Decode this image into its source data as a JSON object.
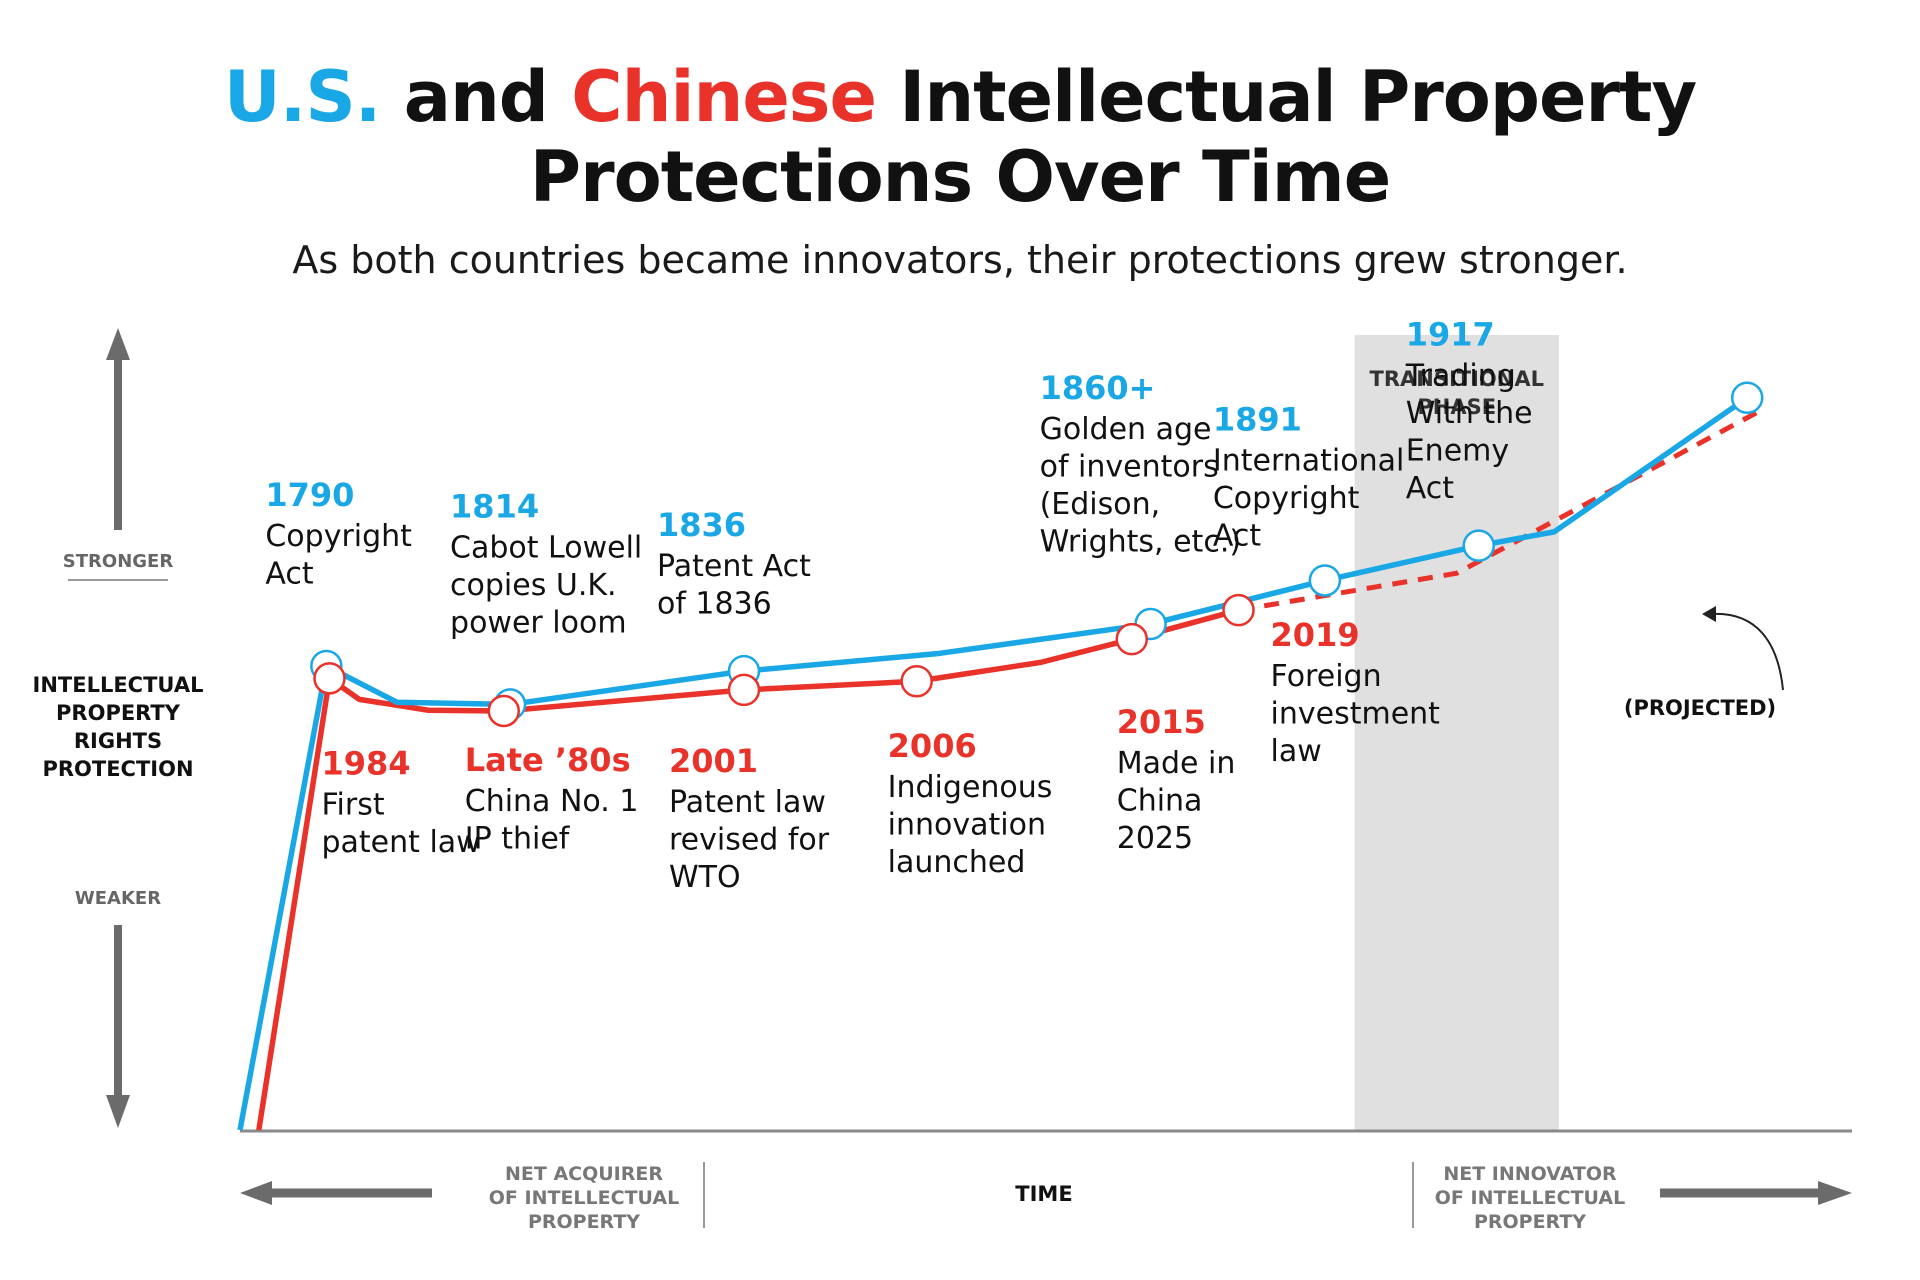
{
  "title": {
    "us_word": "U.S.",
    "and_word": " and ",
    "china_word": "Chinese",
    "rest_line1": " Intellectual Property",
    "line2": "Protections Over Time"
  },
  "subtitle": "As both countries became innovators, their protections grew stronger.",
  "colors": {
    "us": "#1aa7e6",
    "china": "#e8322a",
    "shade": "#e0e0e0",
    "axis": "#6b6b6b"
  },
  "chart_data": {
    "type": "line",
    "y_axis": {
      "label_lines": [
        "INTELLECTUAL",
        "PROPERTY",
        "RIGHTS",
        "PROTECTION"
      ],
      "top_label": "STRONGER",
      "bottom_label": "WEAKER"
    },
    "x_axis": {
      "label": "TIME",
      "left_label_lines": [
        "NET ACQUIRER",
        "OF INTELLECTUAL",
        "PROPERTY"
      ],
      "right_label_lines": [
        "NET INNOVATOR",
        "OF INTELLECTUAL",
        "PROPERTY"
      ]
    },
    "shaded_region": {
      "label_lines": [
        "TRANSITIONAL",
        "PHASE"
      ],
      "from_x": 7.1,
      "to_x": 8.4
    },
    "projected_label": "(PROJECTED)",
    "series": [
      {
        "name": "U.S.",
        "points": [
          [
            0,
            0
          ],
          [
            0.55,
            6.4
          ],
          [
            1,
            5.9
          ],
          [
            1.72,
            5.87
          ],
          [
            3.21,
            6.33
          ],
          [
            4.44,
            6.57
          ],
          [
            5.8,
            6.98
          ],
          [
            6.91,
            7.58
          ],
          [
            7.89,
            8.06
          ],
          [
            8.37,
            8.25
          ],
          [
            9.6,
            10.1
          ]
        ],
        "events": [
          {
            "point": 1,
            "year": "1790",
            "lines": [
              "Copyright",
              "Act"
            ]
          },
          {
            "point": 3,
            "year": "1814",
            "lines": [
              "Cabot Lowell",
              "copies U.K.",
              "power loom"
            ]
          },
          {
            "point": 4,
            "year": "1836",
            "lines": [
              "Patent Act",
              "of 1836"
            ]
          },
          {
            "point": 6,
            "year": "1860+",
            "lines": [
              "Golden age",
              "of inventors",
              "(Edison,",
              "Wrights, etc.)"
            ]
          },
          {
            "point": 7,
            "year": "1891",
            "lines": [
              "International",
              "Copyright",
              "Act"
            ]
          },
          {
            "point": 8,
            "year": "1917",
            "lines": [
              "Trading",
              "With the",
              "Enemy",
              "Act"
            ]
          },
          {
            "point": 10,
            "year": "",
            "lines": []
          }
        ]
      },
      {
        "name": "China",
        "projected_from_point": 9,
        "points": [
          [
            0.12,
            0
          ],
          [
            0.57,
            6.23
          ],
          [
            0.76,
            5.94
          ],
          [
            1.2,
            5.79
          ],
          [
            1.68,
            5.78
          ],
          [
            3.21,
            6.07
          ],
          [
            4.31,
            6.19
          ],
          [
            5.1,
            6.45
          ],
          [
            5.68,
            6.77
          ],
          [
            6.36,
            7.17
          ],
          [
            7.75,
            7.68
          ],
          [
            9.7,
            9.94
          ]
        ],
        "events": [
          {
            "point": 1,
            "year": "1984",
            "lines": [
              "First",
              "patent law"
            ]
          },
          {
            "point": 4,
            "year": "Late ’80s",
            "lines": [
              "China No. 1",
              "IP thief"
            ]
          },
          {
            "point": 5,
            "year": "2001",
            "lines": [
              "Patent law",
              "revised for",
              "WTO"
            ]
          },
          {
            "point": 6,
            "year": "2006",
            "lines": [
              "Indigenous",
              "innovation",
              "launched"
            ]
          },
          {
            "point": 8,
            "year": "2015",
            "lines": [
              "Made in",
              "China",
              "2025"
            ]
          },
          {
            "point": 9,
            "year": "2019",
            "lines": [
              "Foreign",
              "investment",
              "law"
            ]
          }
        ]
      }
    ]
  }
}
